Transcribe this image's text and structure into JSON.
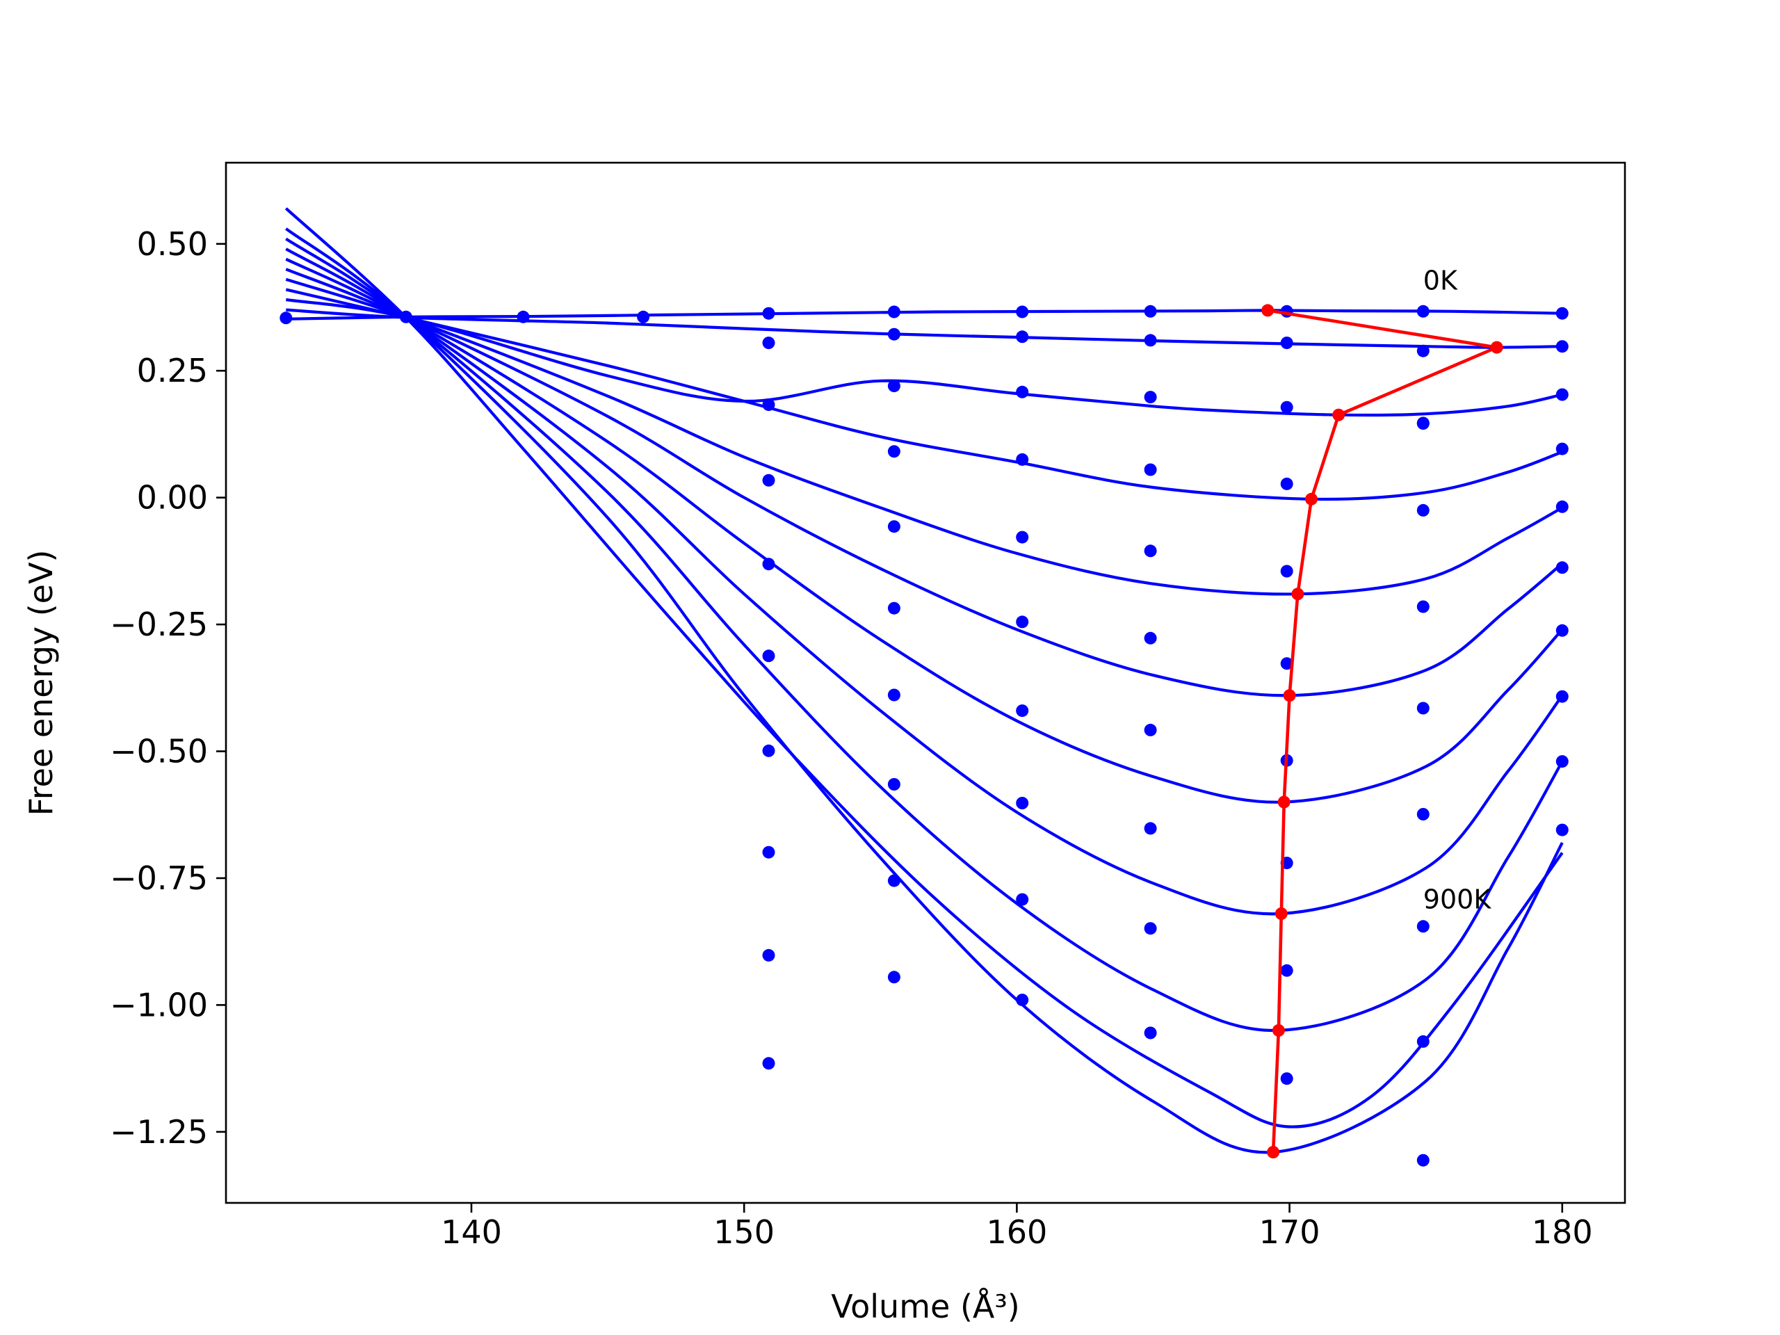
{
  "chart_data": {
    "type": "line",
    "title": "",
    "xlabel": "Volume (Å³)",
    "ylabel": "Free energy (eV)",
    "xlim": [
      131.0,
      182.3
    ],
    "ylim": [
      -1.39,
      0.66
    ],
    "xticks": [
      140,
      150,
      160,
      170,
      180
    ],
    "xtick_labels": [
      "140",
      "150",
      "160",
      "170",
      "180"
    ],
    "yticks": [
      0.5,
      0.25,
      0.0,
      -0.25,
      -0.5,
      -0.75,
      -1.0,
      -1.25
    ],
    "ytick_labels": [
      "0.50",
      "0.25",
      "0.00",
      "−0.25",
      "−0.50",
      "−0.75",
      "−1.00",
      "−1.25"
    ],
    "grid": false,
    "legend": "none",
    "annotations": [
      {
        "text": "0K",
        "x": 174.9,
        "y": 0.41
      },
      {
        "text": "900K",
        "x": 174.9,
        "y": -0.81
      }
    ],
    "colors": {
      "curves": "#0000ff",
      "points": "#0000ff",
      "minimum_path": "#ff0000"
    },
    "point_volumes": [
      133.2,
      137.6,
      141.9,
      146.3,
      150.9,
      155.5,
      160.2,
      164.9,
      169.9,
      174.9,
      180.0
    ],
    "series": [
      {
        "points": [
          0.354,
          0.356,
          0.356,
          0.356,
          0.363,
          0.366,
          0.366,
          0.367,
          0.367,
          0.367,
          0.363
        ],
        "curve": {
          "x": [
            133.2,
            137.6,
            142,
            147,
            152,
            157,
            162,
            167,
            169.2,
            172,
            176,
            180
          ],
          "y": [
            0.352,
            0.356,
            0.357,
            0.36,
            0.363,
            0.366,
            0.367,
            0.368,
            0.369,
            0.368,
            0.367,
            0.363
          ]
        }
      },
      {
        "points": [
          null,
          null,
          null,
          null,
          0.305,
          0.322,
          0.317,
          0.31,
          0.305,
          0.289,
          0.298
        ],
        "curve": {
          "x": [
            133.2,
            137.6,
            145,
            150,
            155,
            160,
            165,
            170,
            175,
            177.6,
            180
          ],
          "y": [
            0.37,
            0.355,
            0.344,
            0.333,
            0.323,
            0.316,
            0.309,
            0.303,
            0.298,
            0.296,
            0.298
          ]
        }
      },
      {
        "points": [
          null,
          null,
          null,
          null,
          0.183,
          0.22,
          0.208,
          0.198,
          0.178,
          0.146,
          0.203
        ],
        "curve": {
          "x": [
            133.2,
            137.6,
            145,
            150,
            155,
            160,
            165,
            168,
            171.8,
            175,
            178,
            180
          ],
          "y": [
            0.39,
            0.355,
            0.24,
            0.19,
            0.23,
            0.205,
            0.18,
            0.17,
            0.163,
            0.165,
            0.18,
            0.203
          ]
        }
      },
      {
        "points": [
          null,
          null,
          null,
          null,
          0.034,
          0.091,
          0.075,
          0.055,
          0.027,
          0.147,
          0.096
        ],
        "curve": {
          "x": [
            133.2,
            137.6,
            145,
            150,
            155,
            160,
            165,
            170.8,
            175,
            178,
            180
          ],
          "y": [
            0.41,
            0.355,
            0.26,
            0.19,
            0.12,
            0.07,
            0.02,
            -0.003,
            0.01,
            0.05,
            0.09
          ]
        }
      },
      {
        "points": [
          null,
          null,
          null,
          null,
          -0.131,
          -0.057,
          -0.078,
          -0.105,
          -0.145,
          -0.025,
          -0.018
        ],
        "curve": {
          "x": [
            133.2,
            137.6,
            145,
            150,
            155,
            160,
            165,
            170.3,
            175,
            178,
            180
          ],
          "y": [
            0.43,
            0.355,
            0.2,
            0.08,
            -0.02,
            -0.11,
            -0.17,
            -0.19,
            -0.16,
            -0.08,
            -0.02
          ]
        }
      },
      {
        "points": [
          null,
          null,
          null,
          null,
          -0.312,
          -0.218,
          -0.245,
          -0.277,
          -0.327,
          -0.215,
          -0.138
        ],
        "curve": {
          "x": [
            133.2,
            137.6,
            145,
            150,
            155,
            160,
            165,
            170.0,
            175,
            178,
            180
          ],
          "y": [
            0.45,
            0.355,
            0.16,
            0.0,
            -0.14,
            -0.26,
            -0.35,
            -0.39,
            -0.34,
            -0.22,
            -0.13
          ]
        }
      },
      {
        "points": [
          null,
          null,
          null,
          null,
          -0.499,
          -0.389,
          -0.42,
          -0.458,
          -0.518,
          -0.415,
          -0.262
        ],
        "curve": {
          "x": [
            133.2,
            137.6,
            145,
            150,
            155,
            160,
            165,
            169.8,
            175,
            178,
            180
          ],
          "y": [
            0.47,
            0.355,
            0.11,
            -0.09,
            -0.28,
            -0.44,
            -0.55,
            -0.6,
            -0.53,
            -0.38,
            -0.26
          ]
        }
      },
      {
        "points": [
          null,
          null,
          null,
          null,
          -0.699,
          -0.565,
          -0.602,
          -0.652,
          -0.72,
          -0.624,
          -0.392
        ],
        "curve": {
          "x": [
            133.2,
            137.6,
            145,
            150,
            155,
            160,
            165,
            169.7,
            175,
            178,
            180
          ],
          "y": [
            0.49,
            0.355,
            0.06,
            -0.19,
            -0.42,
            -0.62,
            -0.76,
            -0.82,
            -0.73,
            -0.54,
            -0.39
          ]
        }
      },
      {
        "points": [
          null,
          null,
          null,
          null,
          -0.902,
          -0.755,
          -0.792,
          -0.849,
          -0.932,
          -0.845,
          -0.52
        ],
        "curve": {
          "x": [
            133.2,
            137.6,
            145,
            150,
            155,
            160,
            165,
            169.6,
            175,
            178,
            180
          ],
          "y": [
            0.51,
            0.355,
            0.01,
            -0.29,
            -0.57,
            -0.8,
            -0.97,
            -1.05,
            -0.95,
            -0.71,
            -0.52
          ]
        }
      },
      {
        "points": [
          null,
          null,
          null,
          null,
          -1.115,
          -0.945,
          -0.99,
          -1.055,
          -1.145,
          -1.072,
          -0.655
        ],
        "curve": {
          "x": [
            133.2,
            137.6,
            145,
            150,
            155,
            160,
            165,
            169.4,
            175,
            178,
            180
          ],
          "y": [
            0.53,
            0.355,
            -0.04,
            -0.39,
            -0.71,
            -0.99,
            -1.19,
            -1.29,
            -1.15,
            -0.89,
            -0.68
          ]
        }
      },
      {
        "points": [
          null,
          null,
          null,
          null,
          null,
          null,
          null,
          null,
          null,
          -1.306,
          null
        ],
        "curve": {
          "x": [
            133.2,
            137.6,
            142,
            147,
            152,
            157,
            162,
            167,
            170,
            173,
            176,
            180
          ],
          "y": [
            0.57,
            0.355,
            0.09,
            -0.22,
            -0.52,
            -0.79,
            -1.01,
            -1.17,
            -1.24,
            -1.18,
            -1.0,
            -0.7
          ]
        }
      }
    ],
    "minimum_path": {
      "x": [
        169.2,
        177.6,
        171.8,
        170.8,
        170.3,
        170.0,
        169.8,
        169.7,
        169.6,
        169.4
      ],
      "y": [
        0.369,
        0.296,
        0.163,
        -0.003,
        -0.19,
        -0.39,
        -0.6,
        -0.82,
        -1.05,
        -1.29
      ]
    }
  }
}
